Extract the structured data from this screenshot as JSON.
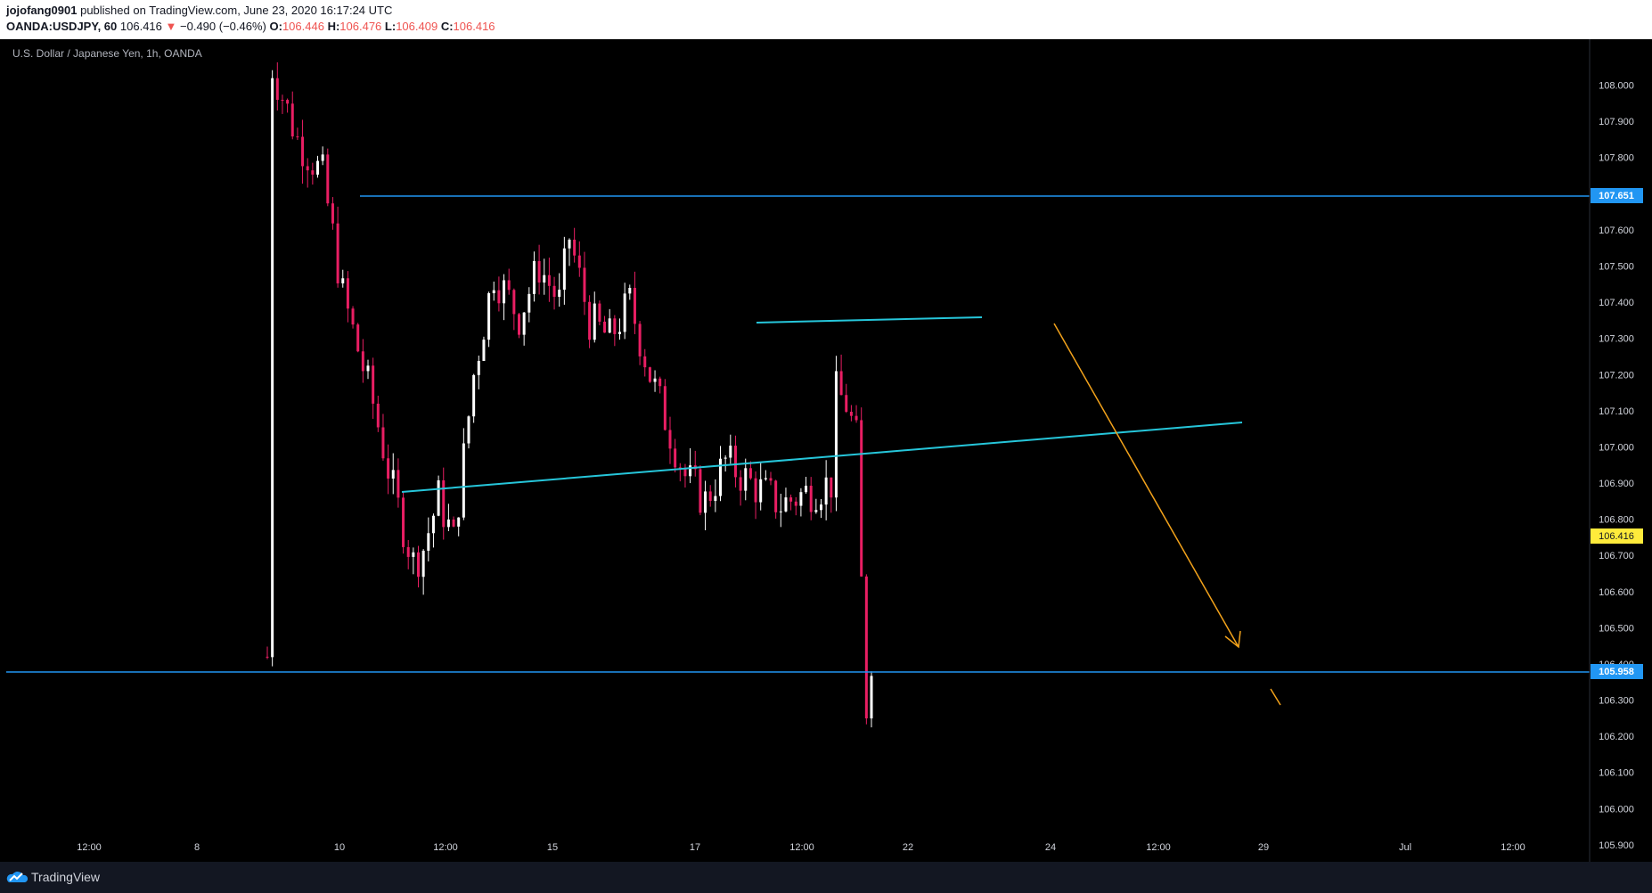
{
  "header": {
    "author": "jojofang0901",
    "published": "published on TradingView.com, June 23, 2020 16:17:24 UTC",
    "symbol": "OANDA:USDJPY, 60",
    "last": "106.416",
    "change_arrow": "▼",
    "change": "−0.490 (−0.46%)",
    "o_label": "O:",
    "o_value": "106.446",
    "h_label": "H:",
    "h_value": "106.476",
    "l_label": "L:",
    "l_value": "106.409",
    "c_label": "C:",
    "c_value": "106.416"
  },
  "chart_data": {
    "type": "candlestick",
    "title": "U.S. Dollar / Japanese Yen, 1h, OANDA",
    "ylim": [
      105.853,
      108.127
    ],
    "y_ticks": [
      "108.000",
      "107.900",
      "107.800",
      "107.700",
      "107.600",
      "107.500",
      "107.400",
      "107.300",
      "107.200",
      "107.100",
      "107.000",
      "106.900",
      "106.800",
      "106.700",
      "106.600",
      "106.500",
      "106.400",
      "106.300",
      "106.200",
      "106.100",
      "106.000",
      "105.900"
    ],
    "x_ticks": [
      "12:00",
      "8",
      "10",
      "12:00",
      "15",
      "17",
      "12:00",
      "22",
      "24",
      "12:00",
      "29",
      "Jul",
      "12:00"
    ],
    "colors": {
      "up": "#ffffff",
      "down": "#e91e63",
      "hline": "#2196f3",
      "trend": "#26c6da",
      "arrow": "#f2a21b",
      "price_label": "#ffeb3b"
    },
    "candle_path_anchors": [
      {
        "x": 1,
        "y": 108.05
      },
      {
        "x": 6,
        "y": 107.85
      },
      {
        "x": 11,
        "y": 107.75
      },
      {
        "x": 15,
        "y": 107.42
      },
      {
        "x": 21,
        "y": 107.12
      },
      {
        "x": 25,
        "y": 106.88
      },
      {
        "x": 29,
        "y": 106.68
      },
      {
        "x": 31,
        "y": 106.72
      },
      {
        "x": 34,
        "y": 106.86
      },
      {
        "x": 37,
        "y": 106.74
      },
      {
        "x": 41,
        "y": 107.2
      },
      {
        "x": 45,
        "y": 107.48
      },
      {
        "x": 50,
        "y": 107.36
      },
      {
        "x": 54,
        "y": 107.5
      },
      {
        "x": 58,
        "y": 107.4
      },
      {
        "x": 60,
        "y": 107.58
      },
      {
        "x": 64,
        "y": 107.35
      },
      {
        "x": 68,
        "y": 107.3
      },
      {
        "x": 72,
        "y": 107.4
      },
      {
        "x": 76,
        "y": 107.2
      },
      {
        "x": 79,
        "y": 107.08
      },
      {
        "x": 83,
        "y": 106.92
      },
      {
        "x": 87,
        "y": 106.85
      },
      {
        "x": 91,
        "y": 106.96
      },
      {
        "x": 96,
        "y": 106.9
      },
      {
        "x": 102,
        "y": 106.84
      },
      {
        "x": 108,
        "y": 106.88
      },
      {
        "x": 112,
        "y": 106.9
      },
      {
        "x": 113,
        "y": 107.15
      },
      {
        "x": 115,
        "y": 107.12
      },
      {
        "x": 117,
        "y": 107.02
      },
      {
        "x": 118,
        "y": 106.62
      },
      {
        "x": 119,
        "y": 106.28
      },
      {
        "x": 120,
        "y": 106.42
      }
    ],
    "annotations": {
      "resistance_level": 107.651,
      "support_level": 105.958,
      "last_price": 106.416
    }
  },
  "footer": {
    "brand": "TradingView"
  }
}
